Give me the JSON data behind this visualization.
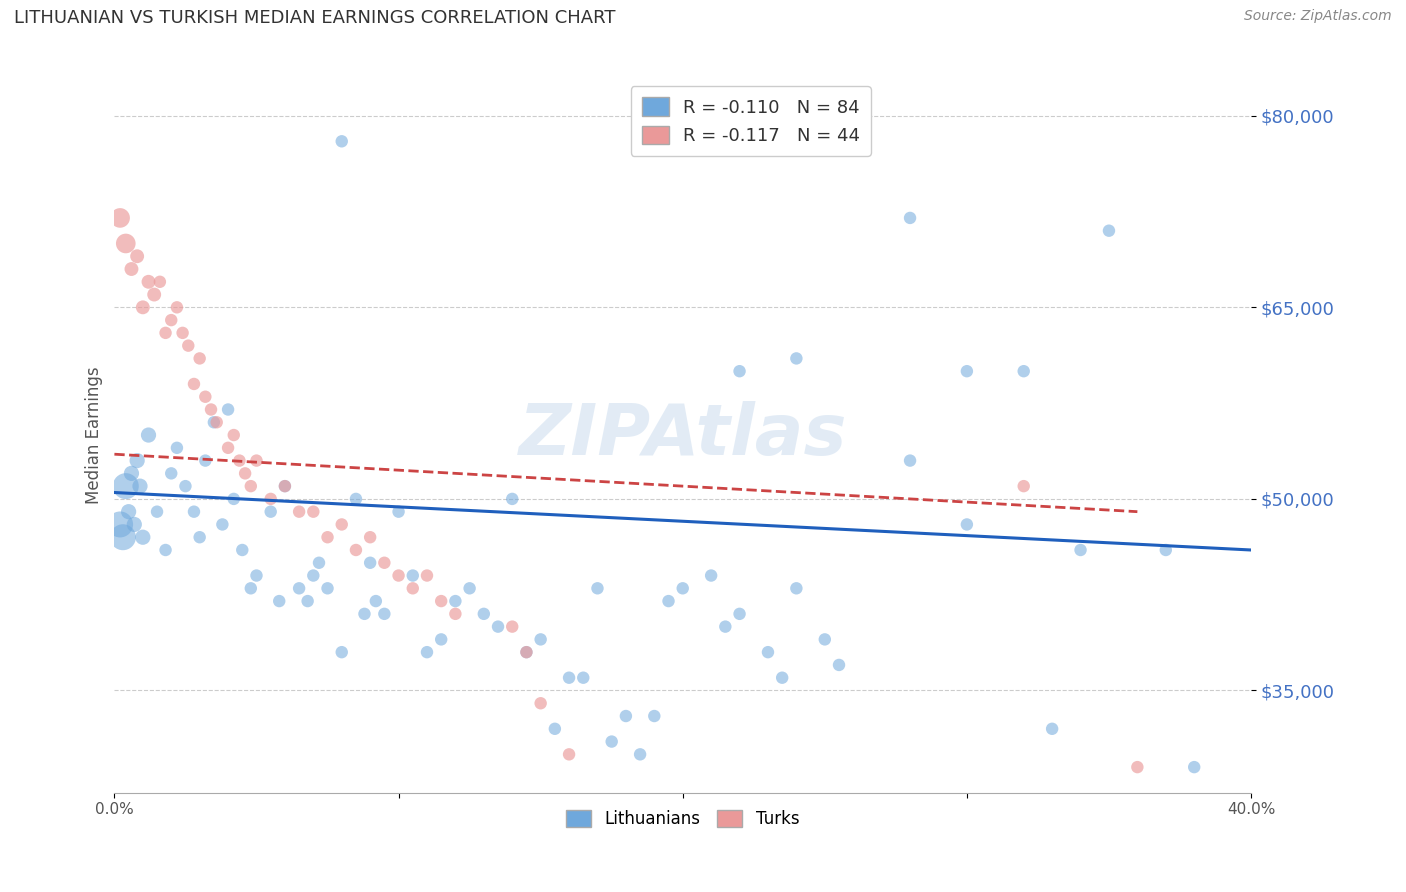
{
  "title": "LITHUANIAN VS TURKISH MEDIAN EARNINGS CORRELATION CHART",
  "source": "Source: ZipAtlas.com",
  "ylabel": "Median Earnings",
  "xlim": [
    0.0,
    0.4
  ],
  "ylim": [
    27000,
    83000
  ],
  "yticks": [
    35000,
    50000,
    65000,
    80000
  ],
  "ytick_labels": [
    "$35,000",
    "$50,000",
    "$65,000",
    "$80,000"
  ],
  "xticks": [
    0.0,
    0.1,
    0.2,
    0.3,
    0.4
  ],
  "xtick_labels": [
    "0.0%",
    "",
    "",
    "",
    "40.0%"
  ],
  "watermark": "ZIPAtlas",
  "legend_blue_r": "R = -0.110",
  "legend_blue_n": "84",
  "legend_pink_r": "R = -0.117",
  "legend_pink_n": "44",
  "blue_color": "#6fa8dc",
  "pink_color": "#ea9999",
  "line_blue": "#1f5fbd",
  "line_pink": "#cc4444",
  "title_color": "#333333",
  "blue_scatter": [
    [
      0.002,
      48000
    ],
    [
      0.003,
      47000
    ],
    [
      0.004,
      51000
    ],
    [
      0.005,
      49000
    ],
    [
      0.006,
      52000
    ],
    [
      0.007,
      48000
    ],
    [
      0.008,
      53000
    ],
    [
      0.009,
      51000
    ],
    [
      0.01,
      47000
    ],
    [
      0.012,
      55000
    ],
    [
      0.015,
      49000
    ],
    [
      0.018,
      46000
    ],
    [
      0.02,
      52000
    ],
    [
      0.022,
      54000
    ],
    [
      0.025,
      51000
    ],
    [
      0.028,
      49000
    ],
    [
      0.03,
      47000
    ],
    [
      0.032,
      53000
    ],
    [
      0.035,
      56000
    ],
    [
      0.038,
      48000
    ],
    [
      0.04,
      57000
    ],
    [
      0.042,
      50000
    ],
    [
      0.045,
      46000
    ],
    [
      0.048,
      43000
    ],
    [
      0.05,
      44000
    ],
    [
      0.055,
      49000
    ],
    [
      0.058,
      42000
    ],
    [
      0.06,
      51000
    ],
    [
      0.065,
      43000
    ],
    [
      0.068,
      42000
    ],
    [
      0.07,
      44000
    ],
    [
      0.072,
      45000
    ],
    [
      0.075,
      43000
    ],
    [
      0.08,
      38000
    ],
    [
      0.085,
      50000
    ],
    [
      0.088,
      41000
    ],
    [
      0.09,
      45000
    ],
    [
      0.092,
      42000
    ],
    [
      0.095,
      41000
    ],
    [
      0.1,
      49000
    ],
    [
      0.105,
      44000
    ],
    [
      0.11,
      38000
    ],
    [
      0.115,
      39000
    ],
    [
      0.12,
      42000
    ],
    [
      0.125,
      43000
    ],
    [
      0.13,
      41000
    ],
    [
      0.135,
      40000
    ],
    [
      0.14,
      50000
    ],
    [
      0.145,
      38000
    ],
    [
      0.15,
      39000
    ],
    [
      0.155,
      32000
    ],
    [
      0.16,
      36000
    ],
    [
      0.165,
      36000
    ],
    [
      0.17,
      43000
    ],
    [
      0.175,
      31000
    ],
    [
      0.18,
      33000
    ],
    [
      0.185,
      30000
    ],
    [
      0.19,
      33000
    ],
    [
      0.195,
      42000
    ],
    [
      0.2,
      43000
    ],
    [
      0.21,
      44000
    ],
    [
      0.215,
      40000
    ],
    [
      0.22,
      41000
    ],
    [
      0.23,
      38000
    ],
    [
      0.235,
      36000
    ],
    [
      0.24,
      43000
    ],
    [
      0.25,
      39000
    ],
    [
      0.255,
      37000
    ],
    [
      0.19,
      80000
    ],
    [
      0.08,
      78000
    ],
    [
      0.28,
      72000
    ],
    [
      0.35,
      71000
    ],
    [
      0.22,
      60000
    ],
    [
      0.24,
      61000
    ],
    [
      0.3,
      60000
    ],
    [
      0.32,
      60000
    ],
    [
      0.28,
      53000
    ],
    [
      0.3,
      48000
    ],
    [
      0.34,
      46000
    ],
    [
      0.37,
      46000
    ],
    [
      0.33,
      32000
    ],
    [
      0.38,
      29000
    ]
  ],
  "pink_scatter": [
    [
      0.002,
      72000
    ],
    [
      0.004,
      70000
    ],
    [
      0.006,
      68000
    ],
    [
      0.008,
      69000
    ],
    [
      0.01,
      65000
    ],
    [
      0.012,
      67000
    ],
    [
      0.014,
      66000
    ],
    [
      0.016,
      67000
    ],
    [
      0.018,
      63000
    ],
    [
      0.02,
      64000
    ],
    [
      0.022,
      65000
    ],
    [
      0.024,
      63000
    ],
    [
      0.026,
      62000
    ],
    [
      0.028,
      59000
    ],
    [
      0.03,
      61000
    ],
    [
      0.032,
      58000
    ],
    [
      0.034,
      57000
    ],
    [
      0.036,
      56000
    ],
    [
      0.04,
      54000
    ],
    [
      0.042,
      55000
    ],
    [
      0.044,
      53000
    ],
    [
      0.046,
      52000
    ],
    [
      0.048,
      51000
    ],
    [
      0.05,
      53000
    ],
    [
      0.055,
      50000
    ],
    [
      0.06,
      51000
    ],
    [
      0.065,
      49000
    ],
    [
      0.07,
      49000
    ],
    [
      0.075,
      47000
    ],
    [
      0.08,
      48000
    ],
    [
      0.085,
      46000
    ],
    [
      0.09,
      47000
    ],
    [
      0.095,
      45000
    ],
    [
      0.1,
      44000
    ],
    [
      0.105,
      43000
    ],
    [
      0.11,
      44000
    ],
    [
      0.115,
      42000
    ],
    [
      0.12,
      41000
    ],
    [
      0.14,
      40000
    ],
    [
      0.145,
      38000
    ],
    [
      0.15,
      34000
    ],
    [
      0.16,
      30000
    ],
    [
      0.32,
      51000
    ],
    [
      0.36,
      29000
    ]
  ],
  "blue_line_x": [
    0.0,
    0.4
  ],
  "blue_line_y": [
    50500,
    46000
  ],
  "pink_line_x": [
    0.0,
    0.36
  ],
  "pink_line_y": [
    53500,
    49000
  ],
  "background_color": "#ffffff",
  "grid_color": "#cccccc",
  "tick_label_color": "#4472c4"
}
